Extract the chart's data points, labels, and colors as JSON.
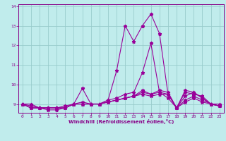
{
  "xlabel": "Windchill (Refroidissement éolien,°C)",
  "bg_color": "#c0ecec",
  "line_color": "#990099",
  "grid_color": "#99cccc",
  "axis_color": "#880088",
  "tick_color": "#880088",
  "xlim": [
    -0.5,
    23.5
  ],
  "ylim": [
    8.55,
    14.1
  ],
  "yticks": [
    9,
    10,
    11,
    12,
    13,
    14
  ],
  "xticks": [
    0,
    1,
    2,
    3,
    4,
    5,
    6,
    7,
    8,
    9,
    10,
    11,
    12,
    13,
    14,
    15,
    16,
    17,
    18,
    19,
    20,
    21,
    22,
    23
  ],
  "series": [
    [
      9.0,
      9.0,
      8.8,
      8.7,
      8.7,
      8.8,
      9.0,
      9.8,
      9.0,
      9.0,
      9.2,
      10.7,
      13.0,
      12.2,
      13.0,
      13.6,
      12.6,
      9.5,
      8.8,
      9.6,
      9.5,
      9.4,
      9.0,
      9.0
    ],
    [
      9.0,
      8.8,
      8.8,
      8.8,
      8.8,
      8.9,
      9.0,
      9.0,
      9.0,
      9.0,
      9.2,
      9.3,
      9.5,
      9.6,
      10.6,
      12.1,
      9.6,
      9.3,
      8.8,
      9.4,
      9.6,
      9.3,
      9.0,
      8.9
    ],
    [
      9.0,
      8.8,
      8.8,
      8.8,
      8.8,
      8.8,
      9.0,
      9.1,
      9.0,
      9.0,
      9.1,
      9.2,
      9.3,
      9.4,
      9.7,
      9.5,
      9.7,
      9.6,
      8.8,
      9.7,
      9.6,
      9.3,
      9.0,
      8.9
    ],
    [
      9.0,
      8.8,
      8.8,
      8.8,
      8.8,
      8.8,
      9.0,
      9.0,
      9.0,
      9.0,
      9.1,
      9.2,
      9.3,
      9.4,
      9.6,
      9.5,
      9.6,
      9.5,
      8.8,
      9.2,
      9.4,
      9.2,
      9.0,
      8.9
    ],
    [
      9.0,
      8.9,
      8.8,
      8.8,
      8.8,
      8.8,
      9.0,
      9.0,
      9.0,
      9.0,
      9.1,
      9.2,
      9.3,
      9.4,
      9.5,
      9.4,
      9.5,
      9.5,
      8.8,
      9.1,
      9.3,
      9.1,
      9.0,
      8.9
    ]
  ]
}
